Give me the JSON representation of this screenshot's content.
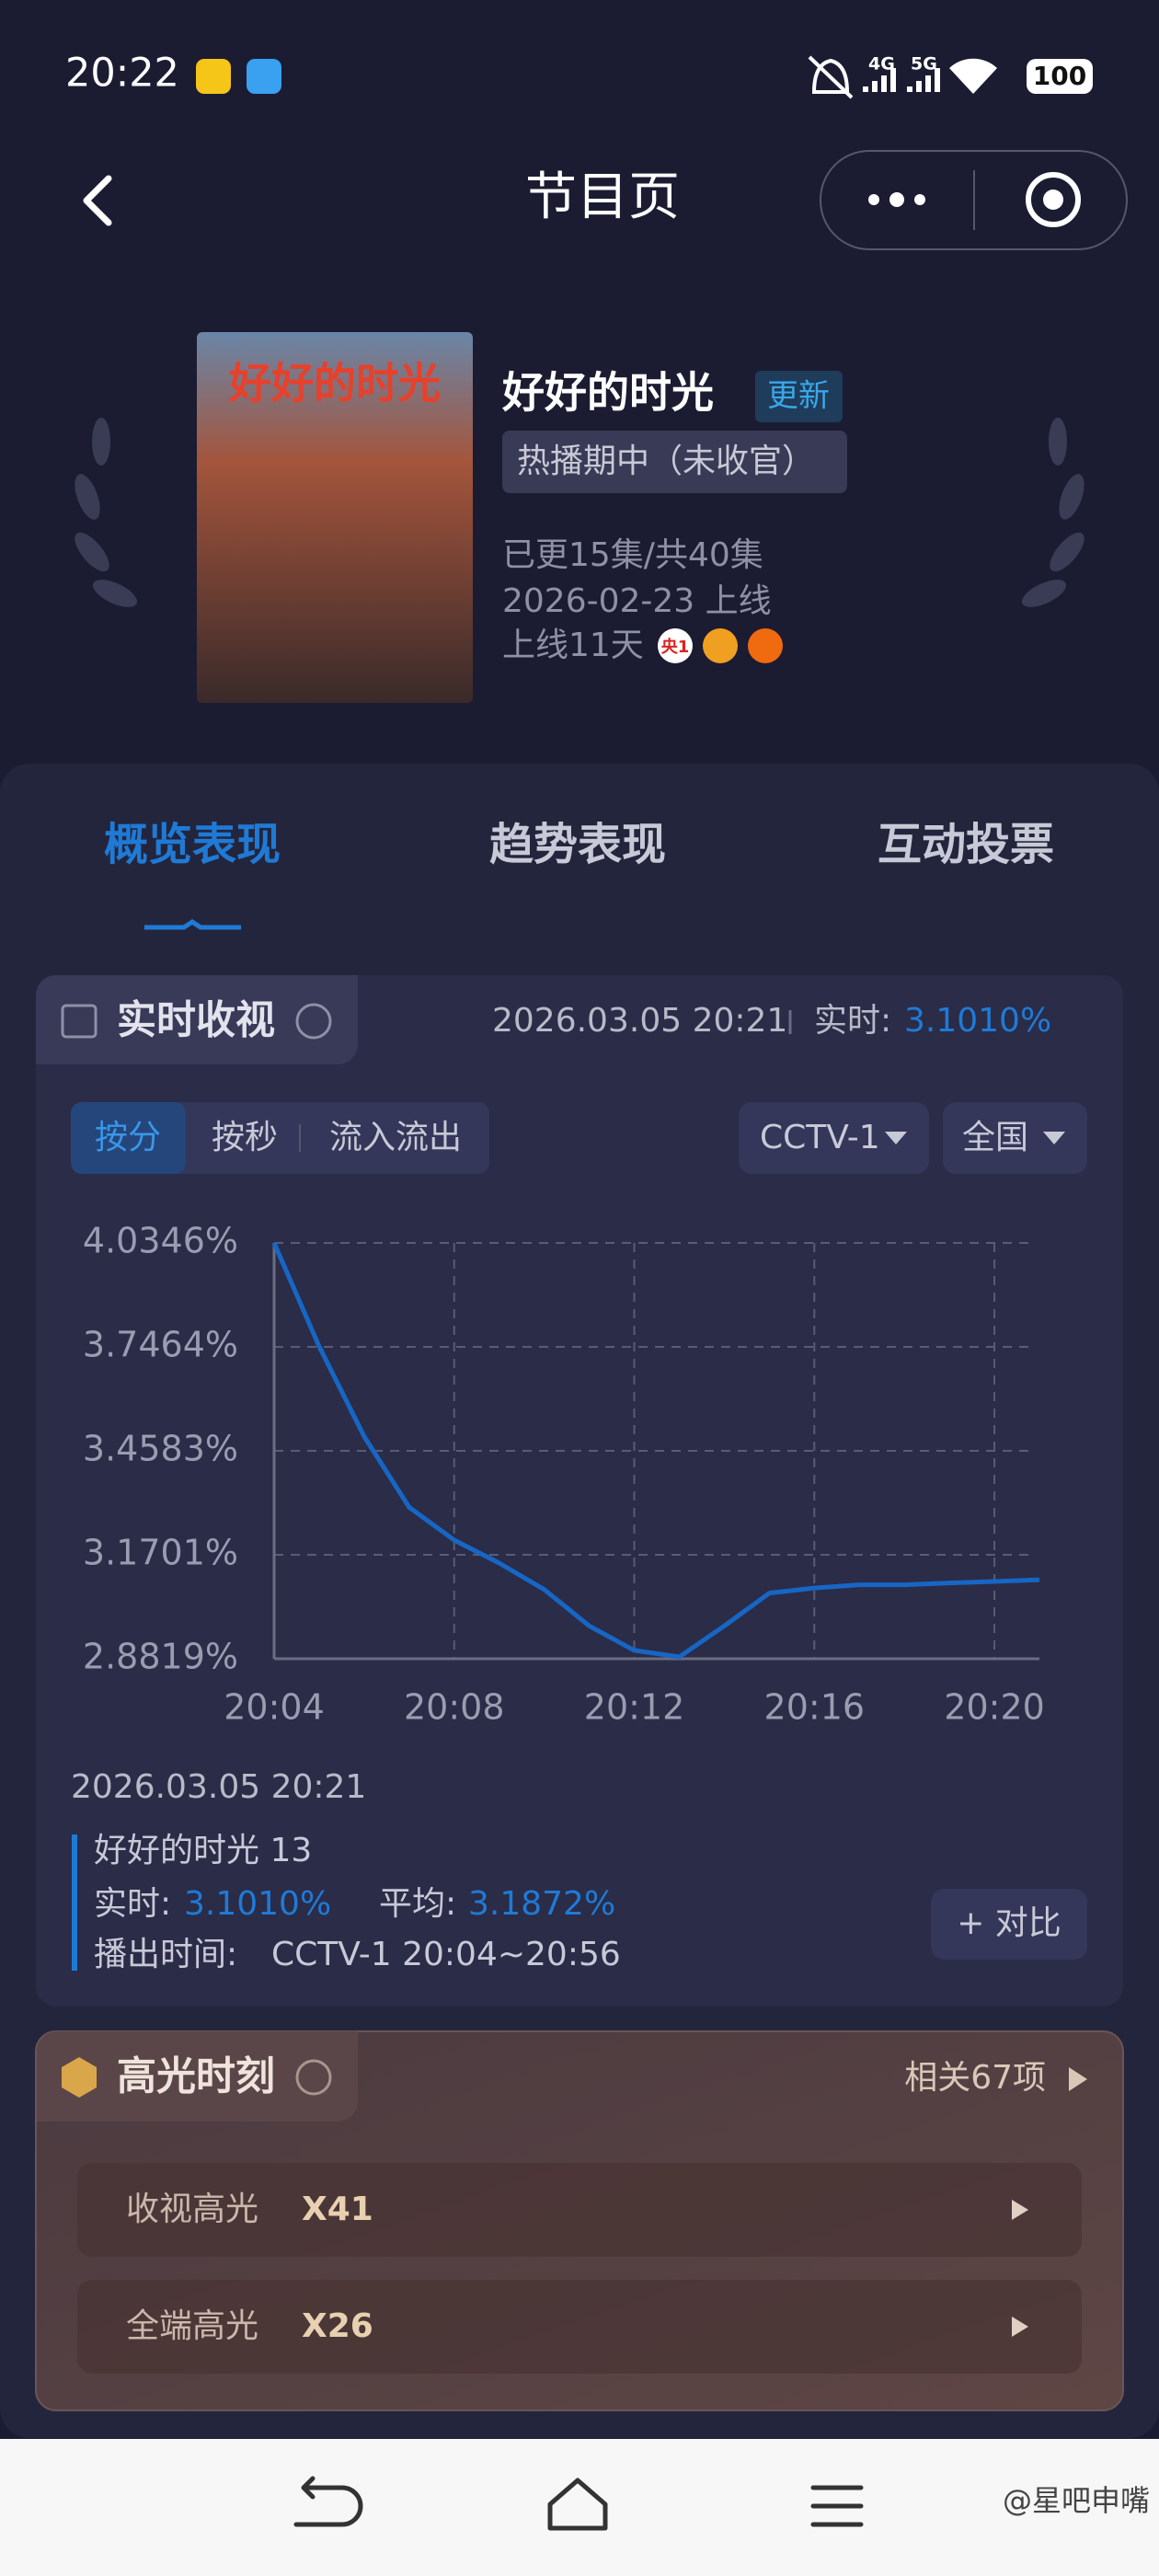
{
  "status_bar": {
    "time": "20:22",
    "network_1": "4G",
    "network_2": "5G",
    "battery": "100"
  },
  "header": {
    "title": "节目页"
  },
  "show": {
    "poster_text": "好好的时光",
    "title": "好好的时光",
    "badge": "更新",
    "status": "热播期中（未收官）",
    "episodes": "已更15集/共40集",
    "premiere": "2026-02-23 上线",
    "days_on_air": "上线11天",
    "channel_badge": "央1"
  },
  "tabs": [
    "概览表现",
    "趋势表现",
    "互动投票"
  ],
  "realtime": {
    "title": "实时收视",
    "timestamp": "2026.03.05 20:21",
    "realtime_label": "实时:",
    "realtime_value": "3.1010%",
    "modes": [
      "按分",
      "按秒",
      "流入流出"
    ],
    "channel": "CCTV-1",
    "region": "全国"
  },
  "chart_data": {
    "type": "line",
    "x": [
      "20:04",
      "20:05",
      "20:06",
      "20:07",
      "20:08",
      "20:09",
      "20:10",
      "20:11",
      "20:12",
      "20:13",
      "20:14",
      "20:15",
      "20:16",
      "20:17",
      "20:18",
      "20:19",
      "20:20",
      "20:21"
    ],
    "values": [
      4.0346,
      3.748,
      3.498,
      3.302,
      3.211,
      3.147,
      3.074,
      2.973,
      2.905,
      2.887,
      2.973,
      3.064,
      3.078,
      3.087,
      3.087,
      3.092,
      3.096,
      3.101
    ],
    "color": "#1766c4",
    "xlim": [
      "20:04",
      "20:21"
    ],
    "xticks": [
      "20:04",
      "20:08",
      "20:12",
      "20:16",
      "20:20"
    ],
    "ylim": [
      2.8819,
      4.0346
    ],
    "yticks": [
      {
        "value": 2.8819,
        "label": "2.8819%"
      },
      {
        "value": 3.1701,
        "label": "3.1701%"
      },
      {
        "value": 3.4583,
        "label": "3.4583%"
      },
      {
        "value": 3.7464,
        "label": "3.7464%"
      },
      {
        "value": 4.0346,
        "label": "4.0346%"
      }
    ],
    "grid": true
  },
  "detail": {
    "timestamp": "2026.03.05 20:21",
    "program": "好好的时光 13",
    "realtime_label": "实时:",
    "realtime_value": "3.1010%",
    "average_label": "平均:",
    "average_value": "3.1872%",
    "airtime_label": "播出时间:",
    "airtime_value": "CCTV-1 20:04~20:56",
    "compare_button": "+ 对比"
  },
  "highlights": {
    "title": "高光时刻",
    "related": "相关67项",
    "rows": [
      {
        "label": "收视高光",
        "value": "X41"
      },
      {
        "label": "全端高光",
        "value": "X26"
      }
    ]
  },
  "watermark": "@星吧申嘴"
}
